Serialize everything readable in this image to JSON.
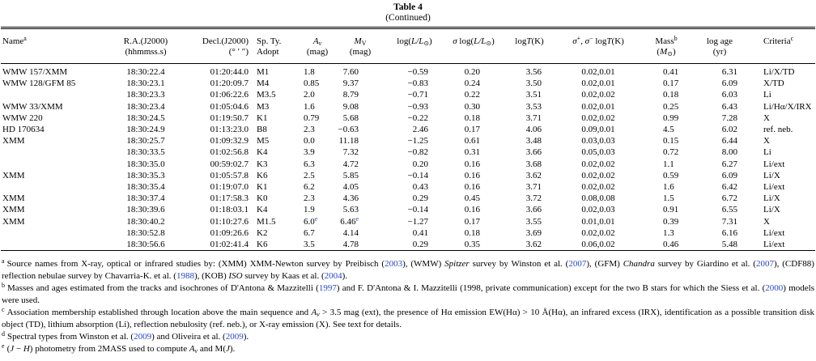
{
  "title": "Table 4",
  "subtitle": "(Continued)",
  "colors": {
    "link": "#2847c9",
    "text": "#000000"
  },
  "table": {
    "columns": [
      {
        "name": "name",
        "lines": [
          [
            {
              "text": "Name"
            },
            {
              "text": "a",
              "sup": true
            }
          ],
          []
        ]
      },
      {
        "name": "ra",
        "lines": [
          [
            {
              "text": "R.A.(J2000)"
            }
          ],
          [
            {
              "text": "(hhmmss.s)"
            }
          ]
        ]
      },
      {
        "name": "decl",
        "lines": [
          [
            {
              "text": "Decl.(J2000)"
            }
          ],
          [
            {
              "text": "(° ′ ″)"
            }
          ]
        ]
      },
      {
        "name": "sp-type",
        "lines": [
          [
            {
              "text": "Sp. Ty."
            }
          ],
          [
            {
              "text": "Adopt"
            }
          ]
        ]
      },
      {
        "name": "av",
        "lines": [
          [
            {
              "text": "A",
              "italic": true
            },
            {
              "text": "v",
              "sub": true,
              "italic": true
            }
          ],
          [
            {
              "text": "(mag)"
            }
          ]
        ]
      },
      {
        "name": "mv",
        "lines": [
          [
            {
              "text": "M",
              "italic": true
            },
            {
              "text": "V",
              "sub": true
            }
          ],
          [
            {
              "text": "(mag)"
            }
          ]
        ]
      },
      {
        "name": "log-l",
        "lines": [
          [
            {
              "text": "log("
            },
            {
              "text": "L/L",
              "italic": true
            },
            {
              "text": "⊙",
              "sub": true
            },
            {
              "text": ")"
            }
          ],
          []
        ]
      },
      {
        "name": "sigma-log-l",
        "lines": [
          [
            {
              "text": "σ",
              "italic": true
            },
            {
              "text": " log("
            },
            {
              "text": "L/L",
              "italic": true
            },
            {
              "text": "⊙",
              "sub": true
            },
            {
              "text": ")"
            }
          ],
          []
        ]
      },
      {
        "name": "log-t",
        "lines": [
          [
            {
              "text": "log"
            },
            {
              "text": "T",
              "italic": true
            },
            {
              "text": "(K)"
            }
          ],
          []
        ]
      },
      {
        "name": "sigma-log-t",
        "lines": [
          [
            {
              "text": "σ",
              "italic": true
            },
            {
              "text": "+",
              "sup": true
            },
            {
              "text": ", "
            },
            {
              "text": "σ",
              "italic": true
            },
            {
              "text": "−",
              "sup": true
            },
            {
              "text": " log"
            },
            {
              "text": "T",
              "italic": true
            },
            {
              "text": "(K)"
            }
          ],
          []
        ]
      },
      {
        "name": "mass",
        "lines": [
          [
            {
              "text": "Mass"
            },
            {
              "text": "b",
              "sup": true
            }
          ],
          [
            {
              "text": "("
            },
            {
              "text": "M",
              "italic": true
            },
            {
              "text": "⊙",
              "sub": true
            },
            {
              "text": ")"
            }
          ]
        ]
      },
      {
        "name": "log-age",
        "lines": [
          [
            {
              "text": "log age"
            }
          ],
          [
            {
              "text": "(yr)"
            }
          ]
        ]
      },
      {
        "name": "criteria",
        "lines": [
          [
            {
              "text": "Criteria"
            },
            {
              "text": "c",
              "sup": true
            }
          ],
          []
        ]
      }
    ],
    "rows": [
      [
        "WMW 157/XMM",
        "18:30:22.4",
        "01:20:44.0",
        "M1",
        "1.8",
        "7.60",
        "−0.59",
        "0.20",
        "3.56",
        "0.02,0.01",
        "0.41",
        "6.31",
        "Li/X/TD"
      ],
      [
        "WMW 128/GFM 85",
        "18:30:23.1",
        "01:20:09.7",
        "M4",
        "0.85",
        "9.37",
        "−0.83",
        "0.24",
        "3.50",
        "0.02,0.01",
        "0.17",
        "6.09",
        "X/TD"
      ],
      [
        "",
        "18:30:23.3",
        "01:06:22.6",
        "M3.5",
        "2.0",
        "8.79",
        "−0.71",
        "0.22",
        "3.51",
        "0.02,0.02",
        "0.18",
        "6.03",
        "Li"
      ],
      [
        "WMW 33/XMM",
        "18:30:23.4",
        "01:05:04.6",
        "M3",
        "1.6",
        "9.08",
        "−0.93",
        "0.30",
        "3.53",
        "0.02,0.01",
        "0.25",
        "6.43",
        "Li/Hα/X/IRX"
      ],
      [
        "WMW 220",
        "18:30:24.5",
        "01:19:50.7",
        "K1",
        "0.79",
        "5.68",
        "−0.22",
        "0.18",
        "3.71",
        "0.02,0.02",
        "0.99",
        "7.28",
        "X"
      ],
      [
        "HD 170634",
        "18:30:24.9",
        "01:13:23.0",
        "B8",
        "2.3",
        "−0.63",
        "2.46",
        "0.17",
        "4.06",
        "0.09,0.01",
        "4.5",
        "6.02",
        "ref. neb."
      ],
      [
        "XMM",
        "18:30:25.7",
        "01:09:32.9",
        "M5",
        "0.0",
        "11.18",
        "−1.25",
        "0.61",
        "3.48",
        "0.03,0.03",
        "0.15",
        "6.44",
        "X"
      ],
      [
        "",
        "18:30:33.5",
        "01:02:56.8",
        "K4",
        "3.9",
        "7.32",
        "−0.82",
        "0.31",
        "3.66",
        "0.05,0.03",
        "0.72",
        "8.00",
        "Li"
      ],
      [
        "",
        "18:30:35.0",
        "00:59:02.7",
        "K3",
        "6.3",
        "4.72",
        "0.20",
        "0.16",
        "3.68",
        "0.02,0.02",
        "1.1",
        "6.27",
        "Li/ext"
      ],
      [
        "XMM",
        "18:30:35.3",
        "01:05:57.8",
        "K6",
        "2.5",
        "5.85",
        "−0.14",
        "0.16",
        "3.62",
        "0.02,0.02",
        "0.59",
        "6.09",
        "Li/X"
      ],
      [
        "",
        "18:30:35.4",
        "01:19:07.0",
        "K1",
        "6.2",
        "4.05",
        "0.43",
        "0.16",
        "3.71",
        "0.02,0.02",
        "1.6",
        "6.42",
        "Li/ext"
      ],
      [
        "XMM",
        "18:30:37.4",
        "01:17:58.3",
        "K0",
        "2.3",
        "4.36",
        "0.29",
        "0.45",
        "3.72",
        "0.08,0.08",
        "1.5",
        "6.72",
        "Li/X"
      ],
      [
        "XMM",
        "18:30:39.6",
        "01:18:03.1",
        "K4",
        "1.9",
        "5.63",
        "−0.14",
        "0.16",
        "3.66",
        "0.02,0.03",
        "0.91",
        "6.55",
        "Li/X"
      ],
      [
        "XMM",
        "18:30:40.2",
        "01:10:27.6",
        "M1.5",
        {
          "v": "6.0",
          "sup": "e"
        },
        {
          "v": "6.46",
          "sup": "e"
        },
        "−1.27",
        "0.17",
        "3.55",
        "0.01,0.01",
        "0.39",
        "7.31",
        "X"
      ],
      [
        "",
        "18:30:52.8",
        "01:09:26.6",
        "K2",
        "6.7",
        "4.14",
        "0.41",
        "0.18",
        "3.69",
        "0.02,0.02",
        "1.3",
        "6.16",
        "Li/ext"
      ],
      [
        "",
        "18:30:56.6",
        "01:02:41.4",
        "K6",
        "3.5",
        "4.78",
        "0.29",
        "0.35",
        "3.62",
        "0.06,0.02",
        "0.46",
        "5.48",
        "Li/ext"
      ]
    ]
  },
  "footnotes": [
    {
      "marker": "a",
      "parts": [
        {
          "text": "Source names from X-ray, optical or infrared studies by: (XMM) XMM-Newton survey by Preibisch ("
        },
        {
          "text": "2003",
          "link": true
        },
        {
          "text": "), (WMW) "
        },
        {
          "text": "Spitzer",
          "italic": true
        },
        {
          "text": " survey by Winston et al. ("
        },
        {
          "text": "2007",
          "link": true
        },
        {
          "text": "), (GFM) "
        },
        {
          "text": "Chandra",
          "italic": true
        },
        {
          "text": " survey by Giardino et al. ("
        },
        {
          "text": "2007",
          "link": true
        },
        {
          "text": "), (CDF88) reflection nebulae survey by Chavarria-K. et al. ("
        },
        {
          "text": "1988",
          "link": true
        },
        {
          "text": "), (KOB) "
        },
        {
          "text": "ISO",
          "italic": true
        },
        {
          "text": " survey by Kaas et al. ("
        },
        {
          "text": "2004",
          "link": true
        },
        {
          "text": ")."
        }
      ]
    },
    {
      "marker": "b",
      "parts": [
        {
          "text": "Masses and ages estimated from the tracks and isochrones of D'Antona & Mazzitelli ("
        },
        {
          "text": "1997",
          "link": true
        },
        {
          "text": ") and F. D'Antona & I. Mazzitelli (1998, private communication) except for the two B stars for which the Siess et al. ("
        },
        {
          "text": "2000",
          "link": true
        },
        {
          "text": ") models were used."
        }
      ]
    },
    {
      "marker": "c",
      "parts": [
        {
          "text": "Association membership established through location above the main sequence and "
        },
        {
          "text": "A",
          "italic": true
        },
        {
          "text": "v",
          "sub": true,
          "italic": true
        },
        {
          "text": " > 3.5 mag (ext), the presence of Hα emission EW(Hα) > 10 Å(Hα), an infrared excess (IRX), identification as a possible transition disk object (TD), lithium absorption (Li), reflection nebulosity (ref. neb.), or X-ray emission (X). See text for details."
        }
      ]
    },
    {
      "marker": "d",
      "parts": [
        {
          "text": "Spectral types from Winston et al. ("
        },
        {
          "text": "2009",
          "link": true
        },
        {
          "text": ") and Oliveira et al. ("
        },
        {
          "text": "2009",
          "link": true
        },
        {
          "text": ")."
        }
      ]
    },
    {
      "marker": "e",
      "parts": [
        {
          "text": "("
        },
        {
          "text": "J",
          "italic": true
        },
        {
          "text": " − "
        },
        {
          "text": "H",
          "italic": true
        },
        {
          "text": ") photometry from 2MASS used to compute "
        },
        {
          "text": "A",
          "italic": true
        },
        {
          "text": "v",
          "sub": true,
          "italic": true
        },
        {
          "text": " and M("
        },
        {
          "text": "J",
          "italic": true
        },
        {
          "text": ")."
        }
      ]
    }
  ]
}
